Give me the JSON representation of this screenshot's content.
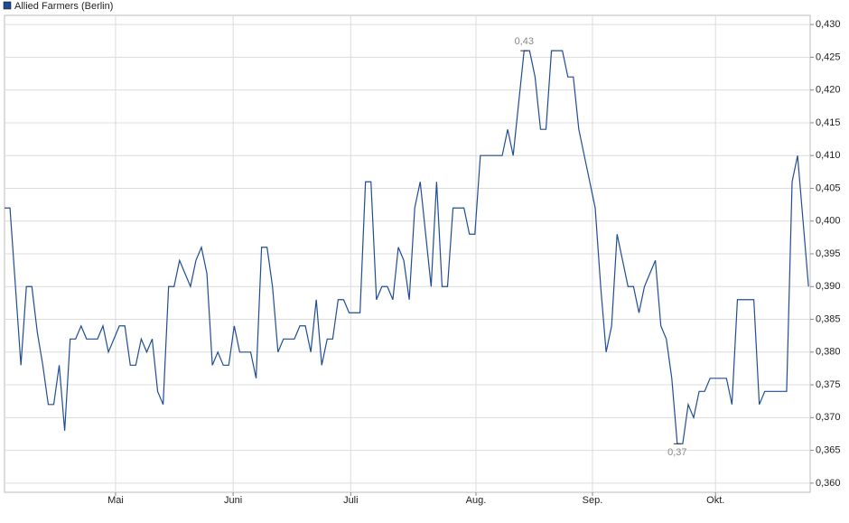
{
  "chart_data": {
    "type": "line",
    "x": [
      0,
      1,
      2,
      3,
      4,
      5,
      6,
      7,
      8,
      9,
      10,
      11,
      12,
      13,
      14,
      15,
      16,
      17,
      18,
      19,
      20,
      21,
      22,
      23,
      24,
      25,
      26,
      27,
      28,
      29,
      30,
      31,
      32,
      33,
      34,
      35,
      36,
      37,
      38,
      39,
      40,
      41,
      42,
      43,
      44,
      45,
      46,
      47,
      48,
      49,
      50,
      51,
      52,
      53,
      54,
      55,
      56,
      57,
      58,
      59,
      60,
      61,
      62,
      63,
      64,
      65,
      66,
      67,
      68,
      69,
      70,
      71,
      72,
      73,
      74,
      75,
      76,
      77,
      78,
      79,
      80,
      81,
      82,
      83,
      84,
      85,
      86,
      87,
      88,
      89,
      90,
      91,
      92,
      93,
      94,
      95,
      96,
      97,
      98,
      99,
      100,
      101,
      102,
      103,
      104,
      105,
      106,
      107,
      108,
      109,
      110,
      111,
      112,
      113,
      114,
      115,
      116,
      117,
      118,
      119,
      120,
      121,
      122,
      123,
      124,
      125,
      126,
      127,
      128,
      129,
      130,
      131,
      132,
      133,
      134,
      135,
      136,
      137,
      138,
      139,
      140,
      141,
      142,
      143,
      144,
      145,
      146,
      147
    ],
    "series": [
      {
        "name": "Allied Farmers (Berlin)",
        "color": "#1f4d94",
        "values": [
          0.402,
          0.402,
          0.39,
          0.378,
          0.39,
          0.39,
          0.383,
          0.378,
          0.372,
          0.372,
          0.378,
          0.368,
          0.382,
          0.382,
          0.384,
          0.382,
          0.382,
          0.382,
          0.384,
          0.38,
          0.382,
          0.384,
          0.384,
          0.378,
          0.378,
          0.382,
          0.38,
          0.382,
          0.374,
          0.372,
          0.39,
          0.39,
          0.394,
          0.392,
          0.39,
          0.394,
          0.396,
          0.392,
          0.378,
          0.38,
          0.378,
          0.378,
          0.384,
          0.38,
          0.38,
          0.38,
          0.376,
          0.396,
          0.396,
          0.39,
          0.38,
          0.382,
          0.382,
          0.382,
          0.384,
          0.384,
          0.38,
          0.388,
          0.378,
          0.382,
          0.382,
          0.388,
          0.388,
          0.386,
          0.386,
          0.386,
          0.406,
          0.406,
          0.388,
          0.39,
          0.39,
          0.388,
          0.396,
          0.394,
          0.388,
          0.402,
          0.406,
          0.398,
          0.39,
          0.406,
          0.39,
          0.39,
          0.402,
          0.402,
          0.402,
          0.398,
          0.398,
          0.41,
          0.41,
          0.41,
          0.41,
          0.41,
          0.414,
          0.41,
          0.418,
          0.426,
          0.426,
          0.422,
          0.414,
          0.414,
          0.426,
          0.426,
          0.426,
          0.422,
          0.422,
          0.414,
          0.41,
          0.406,
          0.402,
          0.39,
          0.38,
          0.384,
          0.398,
          0.394,
          0.39,
          0.39,
          0.386,
          0.39,
          0.392,
          0.394,
          0.384,
          0.382,
          0.376,
          0.366,
          0.366,
          0.372,
          0.37,
          0.374,
          0.374,
          0.376,
          0.376,
          0.376,
          0.376,
          0.372,
          0.388,
          0.388,
          0.388,
          0.388,
          0.372,
          0.374,
          0.374,
          0.374,
          0.374,
          0.374,
          0.406,
          0.41,
          0.4,
          0.39
        ]
      }
    ],
    "xlim": [
      0,
      147.3
    ],
    "xticks": [
      {
        "value": 20.3,
        "label": "Mai"
      },
      {
        "value": 41.8,
        "label": "Juni"
      },
      {
        "value": 63.3,
        "label": "Juli"
      },
      {
        "value": 86.2,
        "label": "Aug."
      },
      {
        "value": 107.5,
        "label": "Sep."
      },
      {
        "value": 130.0,
        "label": "Okt."
      }
    ],
    "ylim": [
      0.3586,
      0.4314
    ],
    "yticks": [
      {
        "value": 0.36,
        "label": "0,360"
      },
      {
        "value": 0.365,
        "label": "0,365"
      },
      {
        "value": 0.37,
        "label": "0,370"
      },
      {
        "value": 0.375,
        "label": "0,375"
      },
      {
        "value": 0.38,
        "label": "0,380"
      },
      {
        "value": 0.385,
        "label": "0,385"
      },
      {
        "value": 0.39,
        "label": "0,390"
      },
      {
        "value": 0.395,
        "label": "0,395"
      },
      {
        "value": 0.4,
        "label": "0,400"
      },
      {
        "value": 0.405,
        "label": "0,405"
      },
      {
        "value": 0.41,
        "label": "0,410"
      },
      {
        "value": 0.415,
        "label": "0,415"
      },
      {
        "value": 0.42,
        "label": "0,420"
      },
      {
        "value": 0.425,
        "label": "0,425"
      },
      {
        "value": 0.43,
        "label": "0,430"
      }
    ],
    "annotations": [
      {
        "text": "0,43",
        "x": 95,
        "y": 0.426
      },
      {
        "text": "0,37",
        "x": 123,
        "y": 0.366
      }
    ],
    "grid": true,
    "legend": "top-left"
  }
}
